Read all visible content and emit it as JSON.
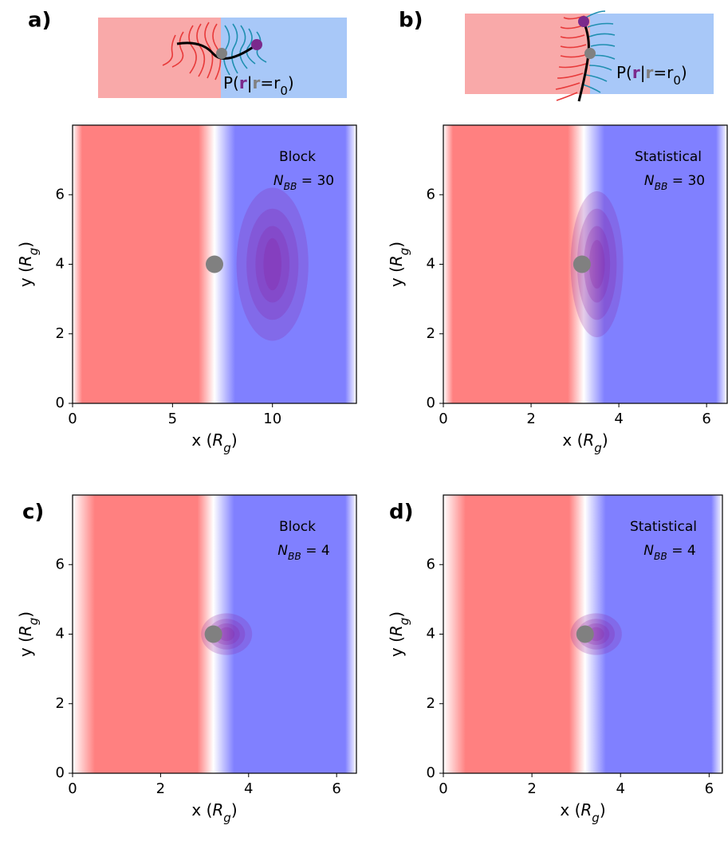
{
  "chart_data": [
    {
      "type": "contour",
      "panel_label": "a)",
      "annotation": "Block",
      "n_label": {
        "symbol": "N",
        "subscript": "BB",
        "text": " = 30"
      },
      "xlabel": [
        {
          "text": "x ("
        },
        {
          "text": "R",
          "italic": true
        },
        {
          "text": "g",
          "italic": true,
          "sub": true
        },
        {
          "text": ")"
        }
      ],
      "ylabel": [
        {
          "text": "y ("
        },
        {
          "text": "R",
          "italic": true
        },
        {
          "text": "g",
          "italic": true,
          "sub": true
        },
        {
          "text": ")"
        }
      ],
      "xlim": [
        0,
        14.2
      ],
      "ylim": [
        0,
        8
      ],
      "xticks": [
        0,
        5,
        10
      ],
      "yticks": [
        0,
        2,
        4,
        6
      ],
      "interface": 7.1,
      "point": [
        7.1,
        4
      ],
      "contour_center": [
        10,
        4
      ],
      "contour_radii": [
        [
          1.8,
          2.2
        ],
        [
          1.3,
          1.6
        ],
        [
          0.85,
          1.1
        ],
        [
          0.45,
          0.75
        ]
      ],
      "schematic_label": [
        {
          "text": "P("
        },
        {
          "text": "r",
          "color": "#7b2a8c",
          "bold": true
        },
        {
          "text": "|"
        },
        {
          "text": "r",
          "color": "#808080",
          "bold": true
        },
        {
          "text": "=r"
        },
        {
          "text": "0",
          "sub": true
        },
        {
          "text": ")"
        }
      ]
    },
    {
      "type": "contour",
      "panel_label": "b)",
      "annotation": "Statistical",
      "n_label": {
        "symbol": "N",
        "subscript": "BB",
        "text": " = 30"
      },
      "xlabel": [
        {
          "text": "x ("
        },
        {
          "text": "R",
          "italic": true
        },
        {
          "text": "g",
          "italic": true,
          "sub": true
        },
        {
          "text": ")"
        }
      ],
      "ylabel": [
        {
          "text": "y ("
        },
        {
          "text": "R",
          "italic": true
        },
        {
          "text": "g",
          "italic": true,
          "sub": true
        },
        {
          "text": ")"
        }
      ],
      "xlim": [
        0,
        6.47
      ],
      "ylim": [
        0,
        8
      ],
      "xticks": [
        0,
        2,
        4,
        6
      ],
      "yticks": [
        0,
        2,
        4,
        6
      ],
      "interface": 3.2,
      "point": [
        3.16,
        4
      ],
      "contour_center": [
        3.5,
        4
      ],
      "contour_radii": [
        [
          0.6,
          2.1
        ],
        [
          0.45,
          1.6
        ],
        [
          0.3,
          1.1
        ],
        [
          0.18,
          0.7
        ]
      ],
      "schematic_label": [
        {
          "text": "P("
        },
        {
          "text": "r",
          "color": "#7b2a8c",
          "bold": true
        },
        {
          "text": "|"
        },
        {
          "text": "r",
          "color": "#808080",
          "bold": true
        },
        {
          "text": "=r"
        },
        {
          "text": "0",
          "sub": true
        },
        {
          "text": ")"
        }
      ]
    },
    {
      "type": "contour",
      "panel_label": "c)",
      "annotation": "Block",
      "n_label": {
        "symbol": "N",
        "subscript": "BB",
        "text": " = 4"
      },
      "xlabel": [
        {
          "text": "x ("
        },
        {
          "text": "R",
          "italic": true
        },
        {
          "text": "g",
          "italic": true,
          "sub": true
        },
        {
          "text": ")"
        }
      ],
      "ylabel": [
        {
          "text": "y ("
        },
        {
          "text": "R",
          "italic": true
        },
        {
          "text": "g",
          "italic": true,
          "sub": true
        },
        {
          "text": ")"
        }
      ],
      "xlim": [
        0,
        6.45
      ],
      "ylim": [
        0,
        8
      ],
      "xticks": [
        0,
        2,
        4,
        6
      ],
      "yticks": [
        0,
        2,
        4,
        6
      ],
      "interface": 3.2,
      "point": [
        3.2,
        4
      ],
      "contour_center": [
        3.5,
        4
      ],
      "contour_radii": [
        [
          0.58,
          0.6
        ],
        [
          0.42,
          0.44
        ],
        [
          0.3,
          0.31
        ],
        [
          0.18,
          0.2
        ]
      ]
    },
    {
      "type": "contour",
      "panel_label": "d)",
      "annotation": "Statistical",
      "n_label": {
        "symbol": "N",
        "subscript": "BB",
        "text": " = 4"
      },
      "xlabel": [
        {
          "text": "x ("
        },
        {
          "text": "R",
          "italic": true
        },
        {
          "text": "g",
          "italic": true,
          "sub": true
        },
        {
          "text": ")"
        }
      ],
      "ylabel": [
        {
          "text": "y ("
        },
        {
          "text": "R",
          "italic": true
        },
        {
          "text": "g",
          "italic": true,
          "sub": true
        },
        {
          "text": ")"
        }
      ],
      "xlim": [
        0,
        6.3
      ],
      "ylim": [
        0,
        8
      ],
      "xticks": [
        0,
        2,
        4,
        6
      ],
      "yticks": [
        0,
        2,
        4,
        6
      ],
      "interface": 3.2,
      "point": [
        3.2,
        4
      ],
      "contour_center": [
        3.45,
        4
      ],
      "contour_radii": [
        [
          0.58,
          0.6
        ],
        [
          0.42,
          0.44
        ],
        [
          0.3,
          0.31
        ],
        [
          0.18,
          0.2
        ]
      ]
    }
  ]
}
